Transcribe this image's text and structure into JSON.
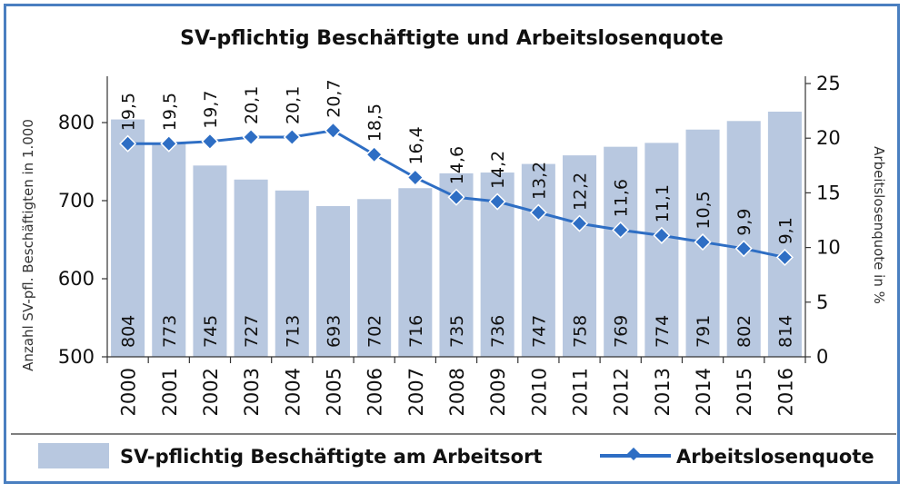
{
  "chart_data": {
    "type": "bar",
    "title": "SV-pflichtig Beschäftigte und Arbeitslosenquote",
    "categories": [
      "2000",
      "2001",
      "2002",
      "2003",
      "2004",
      "2005",
      "2006",
      "2007",
      "2008",
      "2009",
      "2010",
      "2011",
      "2012",
      "2013",
      "2014",
      "2015",
      "2016"
    ],
    "series": [
      {
        "name": "SV-pflichtig Beschäftigte am Arbeitsort",
        "type": "bar",
        "axis": "left",
        "values": [
          804,
          773,
          745,
          727,
          713,
          693,
          702,
          716,
          735,
          736,
          747,
          758,
          769,
          774,
          791,
          802,
          814
        ],
        "labels": [
          "804",
          "773",
          "745",
          "727",
          "713",
          "693",
          "702",
          "716",
          "735",
          "736",
          "747",
          "758",
          "769",
          "774",
          "791",
          "802",
          "814"
        ],
        "color": "#b8c8e0"
      },
      {
        "name": "Arbeitslosenquote",
        "type": "line",
        "axis": "right",
        "values": [
          19.5,
          19.5,
          19.7,
          20.1,
          20.1,
          20.7,
          18.5,
          16.4,
          14.6,
          14.2,
          13.2,
          12.2,
          11.6,
          11.1,
          10.5,
          9.9,
          9.1
        ],
        "labels": [
          "19,5",
          "19,5",
          "19,7",
          "20,1",
          "20,1",
          "20,7",
          "18,5",
          "16,4",
          "14,6",
          "14,2",
          "13,2",
          "12,2",
          "11,6",
          "11,1",
          "10,5",
          "9,9",
          "9,1"
        ],
        "color": "#2e6ec4"
      }
    ],
    "y_left": {
      "label": "Anzahl SV-pfl. Beschäftigten in 1.000",
      "range": [
        500,
        850
      ],
      "ticks": [
        500,
        600,
        700,
        800
      ],
      "tick_labels": [
        "500",
        "600",
        "700",
        "800"
      ]
    },
    "y_right": {
      "label": "Arbeitslosenquote in %",
      "range": [
        0,
        25
      ],
      "ticks": [
        0,
        5,
        10,
        15,
        20,
        25
      ],
      "tick_labels": [
        "0",
        "5",
        "10",
        "15",
        "20",
        "25"
      ]
    },
    "legend": {
      "position": "bottom",
      "entries": [
        "SV-pflichtig Beschäftigte am Arbeitsort",
        "Arbeitslosenquote"
      ]
    }
  }
}
